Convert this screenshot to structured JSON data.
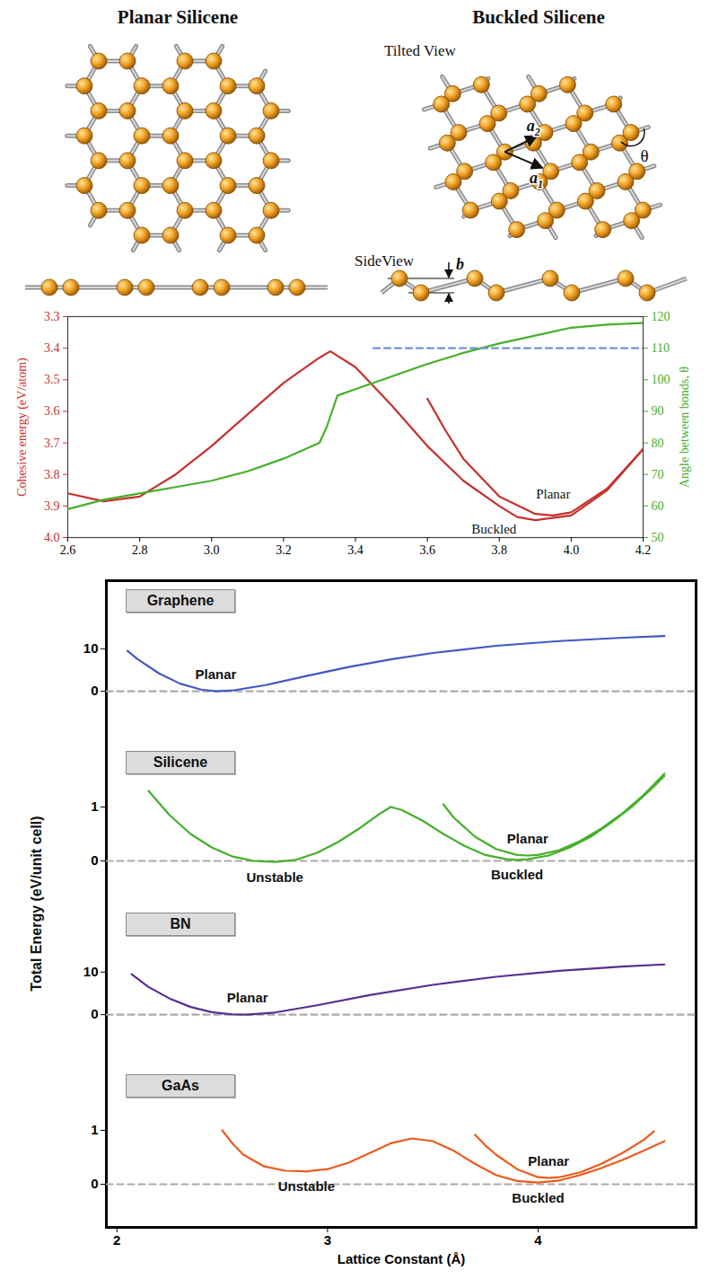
{
  "diagram": {
    "planar_title": "Planar Silicene",
    "buckled_title": "Buckled Silicene",
    "tilted_view": "Tilted View",
    "side_view": "SideView",
    "vectors": [
      {
        "text": "a",
        "sub": "2"
      },
      {
        "text": "a",
        "sub": "1"
      }
    ],
    "angle_label": "θ",
    "buckling_label": "b"
  },
  "chart_data": [
    {
      "type": "line",
      "ylabel": "Cohesive energy (eV/atom)",
      "y2label": "Angle between bonds, θ",
      "xlim": [
        2.6,
        4.2
      ],
      "xticks": [
        2.6,
        2.8,
        {
          "value": 3,
          "label": "3.0"
        },
        3.2,
        3.4,
        3.6,
        3.8,
        {
          "value": 4,
          "label": "4.0"
        },
        4.2
      ],
      "ylim": [
        4,
        3.3
      ],
      "yticks": [
        3.3,
        3.4,
        3.5,
        3.6,
        3.7,
        3.8,
        3.9,
        {
          "value": 4,
          "label": "4.0"
        }
      ],
      "y2lim": [
        50,
        120
      ],
      "y2ticks": [
        50,
        60,
        70,
        80,
        90,
        100,
        110,
        120
      ],
      "series": [
        {
          "name": "Buckled",
          "color": "#c8302c",
          "x": [
            2.6,
            2.7,
            2.8,
            2.9,
            3.0,
            3.1,
            3.2,
            3.3,
            3.33,
            3.4,
            3.5,
            3.6,
            3.7,
            3.8,
            3.85,
            3.9,
            4.0,
            4.1,
            4.2
          ],
          "values": [
            3.86,
            3.885,
            3.87,
            3.8,
            3.71,
            3.61,
            3.51,
            3.43,
            3.41,
            3.46,
            3.58,
            3.71,
            3.82,
            3.9,
            3.935,
            3.945,
            3.93,
            3.85,
            3.72
          ]
        },
        {
          "name": "Planar",
          "color": "#c8302c",
          "x": [
            3.6,
            3.65,
            3.7,
            3.8,
            3.9,
            3.95,
            4.0,
            4.1,
            4.2
          ],
          "values": [
            3.56,
            3.66,
            3.75,
            3.87,
            3.925,
            3.93,
            3.92,
            3.845,
            3.72
          ]
        },
        {
          "axis": "y2",
          "color": "#45b02a",
          "x": [
            2.6,
            2.7,
            2.8,
            2.9,
            3.0,
            3.1,
            3.2,
            3.3,
            3.32,
            3.35,
            3.4,
            3.5,
            3.6,
            3.7,
            3.8,
            3.9,
            4.0,
            4.1,
            4.2
          ],
          "values": [
            59,
            62,
            64,
            66,
            68,
            71,
            75,
            80,
            85,
            95,
            97,
            101,
            105,
            108.5,
            111.5,
            114,
            116.5,
            117.5,
            118
          ]
        },
        {
          "axis": "y2",
          "color": "#6f93d8",
          "line_style": "dashed",
          "x": [
            3.45,
            4.2
          ],
          "values": [
            110,
            110
          ]
        }
      ]
    },
    {
      "type": "line",
      "xlabel": "Lattice Constant (Å)",
      "ylabel": "Total Energy (eV/unit cell)",
      "xlim": [
        1.95,
        4.75
      ],
      "xticks": [
        2,
        3,
        4
      ],
      "panels": [
        {
          "title": "Graphene",
          "ylim": [
            -12,
            26
          ],
          "yticks": [
            0,
            10
          ],
          "series": [
            {
              "color": "#aaaaaa",
              "line_style": "dashed",
              "x": [
                1.95,
                4.75
              ],
              "values": [
                0,
                0
              ]
            },
            {
              "name": "Planar",
              "color": "#4457c4",
              "x": [
                2.05,
                2.1,
                2.2,
                2.3,
                2.4,
                2.47,
                2.55,
                2.7,
                2.9,
                3.1,
                3.3,
                3.5,
                3.8,
                4.1,
                4.4,
                4.6
              ],
              "values": [
                9.5,
                7.5,
                4.2,
                1.8,
                0.4,
                0,
                0.2,
                1.4,
                3.6,
                5.7,
                7.5,
                9,
                10.7,
                11.8,
                12.6,
                13
              ]
            }
          ]
        },
        {
          "title": "Silicene",
          "ylim": [
            -0.8,
            2.2
          ],
          "yticks": [
            0,
            1
          ],
          "series": [
            {
              "color": "#aaaaaa",
              "line_style": "dashed",
              "x": [
                1.95,
                4.75
              ],
              "values": [
                0,
                0
              ]
            },
            {
              "name": "Unstable",
              "color": "#45b02a",
              "x": [
                2.15,
                2.25,
                2.35,
                2.45,
                2.55,
                2.65,
                2.75,
                2.85,
                2.95,
                3.05,
                3.15,
                3.25,
                3.3
              ],
              "values": [
                1.3,
                0.85,
                0.5,
                0.25,
                0.08,
                0,
                -0.02,
                0.02,
                0.15,
                0.35,
                0.6,
                0.88,
                1.0
              ]
            },
            {
              "name": "Buckled",
              "color": "#45b02a",
              "x": [
                3.3,
                3.35,
                3.45,
                3.55,
                3.65,
                3.75,
                3.85,
                3.9,
                3.95,
                4.05,
                4.15,
                4.25,
                4.35,
                4.45,
                4.55,
                4.6
              ],
              "values": [
                1.0,
                0.95,
                0.75,
                0.5,
                0.28,
                0.11,
                0.03,
                0.02,
                0.03,
                0.1,
                0.25,
                0.45,
                0.72,
                1.02,
                1.38,
                1.58
              ]
            },
            {
              "name": "Planar",
              "color": "#45b02a",
              "x": [
                3.55,
                3.6,
                3.7,
                3.8,
                3.9,
                3.95,
                4.0,
                4.1,
                4.2,
                4.3,
                4.4,
                4.5,
                4.6
              ],
              "values": [
                1.05,
                0.8,
                0.45,
                0.22,
                0.11,
                0.1,
                0.11,
                0.2,
                0.37,
                0.6,
                0.88,
                1.22,
                1.62
              ]
            }
          ]
        },
        {
          "title": "BN",
          "ylim": [
            -12,
            26
          ],
          "yticks": [
            0,
            10
          ],
          "series": [
            {
              "color": "#aaaaaa",
              "line_style": "dashed",
              "x": [
                1.95,
                4.75
              ],
              "values": [
                0,
                0
              ]
            },
            {
              "name": "Planar",
              "color": "#5a2d91",
              "x": [
                2.07,
                2.15,
                2.25,
                2.35,
                2.45,
                2.55,
                2.62,
                2.75,
                2.95,
                3.2,
                3.5,
                3.8,
                4.1,
                4.4,
                4.6
              ],
              "values": [
                9.5,
                6.5,
                3.8,
                1.8,
                0.6,
                0.05,
                0,
                0.5,
                2.2,
                4.6,
                7,
                8.9,
                10.3,
                11.3,
                11.8
              ]
            }
          ]
        },
        {
          "title": "GaAs",
          "ylim": [
            -0.8,
            2.2
          ],
          "yticks": [
            0,
            1
          ],
          "series": [
            {
              "color": "#aaaaaa",
              "line_style": "dashed",
              "x": [
                1.95,
                4.75
              ],
              "values": [
                0,
                0
              ]
            },
            {
              "name": "Unstable",
              "color": "#ea5b1c",
              "x": [
                2.5,
                2.55,
                2.6,
                2.7,
                2.8,
                2.9,
                3.0,
                3.1,
                3.2,
                3.3
              ],
              "values": [
                1.0,
                0.75,
                0.55,
                0.33,
                0.25,
                0.24,
                0.28,
                0.4,
                0.58,
                0.76
              ]
            },
            {
              "name": "Buckled",
              "color": "#ea5b1c",
              "x": [
                3.3,
                3.4,
                3.5,
                3.6,
                3.7,
                3.8,
                3.9,
                4.0,
                4.1,
                4.2,
                4.3,
                4.4,
                4.5,
                4.6
              ],
              "values": [
                0.76,
                0.85,
                0.8,
                0.62,
                0.38,
                0.17,
                0.06,
                0.03,
                0.07,
                0.17,
                0.3,
                0.45,
                0.62,
                0.8
              ]
            },
            {
              "name": "Planar",
              "color": "#ea5b1c",
              "x": [
                3.7,
                3.75,
                3.8,
                3.9,
                4.0,
                4.05,
                4.1,
                4.2,
                4.3,
                4.4,
                4.5,
                4.55
              ],
              "values": [
                0.92,
                0.72,
                0.55,
                0.28,
                0.13,
                0.12,
                0.13,
                0.22,
                0.38,
                0.58,
                0.82,
                0.98
              ]
            }
          ]
        }
      ]
    }
  ]
}
